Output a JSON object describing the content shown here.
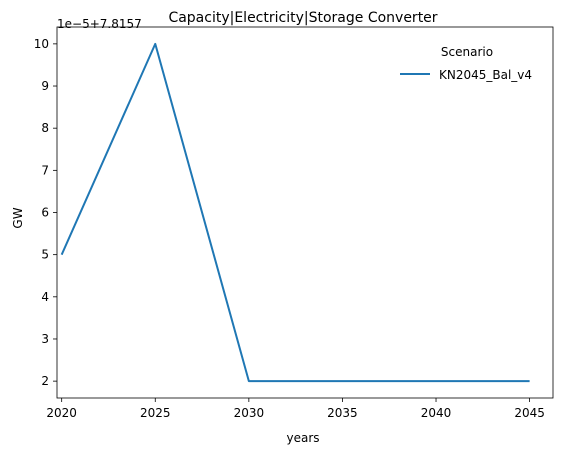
{
  "chart_data": {
    "type": "line",
    "title": "Capacity|Electricity|Storage Converter",
    "xlabel": "years",
    "ylabel": "GW",
    "y_offset_label": "1e−5+7.8157",
    "x": [
      2020,
      2025,
      2030,
      2035,
      2040,
      2045
    ],
    "x_ticks": [
      "2020",
      "2025",
      "2030",
      "2035",
      "2040",
      "2045"
    ],
    "y_ticks": [
      "2",
      "3",
      "4",
      "5",
      "6",
      "7",
      "8",
      "9",
      "10"
    ],
    "xlim": [
      2019.75,
      2046.25
    ],
    "ylim": [
      1.6,
      10.4
    ],
    "grid": false,
    "legend": {
      "title": "Scenario",
      "placement": "top-right"
    },
    "series": [
      {
        "name": "KN2045_Bal_v4",
        "color": "#1f77b4",
        "values": [
          5,
          10,
          2,
          2,
          2,
          2
        ]
      }
    ]
  }
}
